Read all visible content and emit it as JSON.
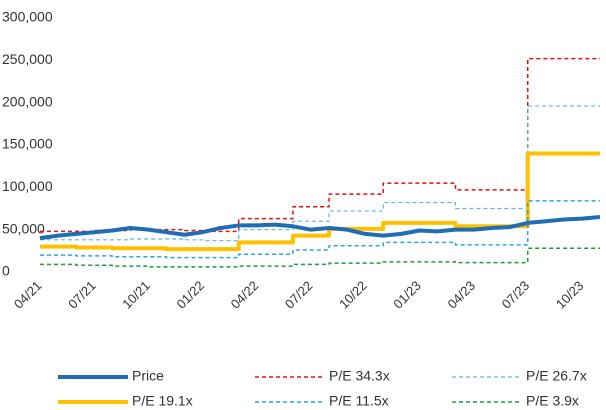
{
  "chart_data": {
    "type": "line",
    "categories": [
      "04/21",
      null,
      null,
      "07/21",
      null,
      null,
      "10/21",
      null,
      null,
      "01/22",
      null,
      null,
      "04/22",
      null,
      null,
      "07/22",
      null,
      null,
      "10/22",
      null,
      null,
      "01/23",
      null,
      null,
      "04/23",
      null,
      null,
      "07/23",
      null,
      null,
      "10/23",
      null
    ],
    "ylim": [
      0,
      300000
    ],
    "yticks": [
      0,
      {
        "value": 50000,
        "label": "50,000"
      },
      {
        "value": 100000,
        "label": "100,000"
      },
      {
        "value": 150000,
        "label": "150,000"
      },
      {
        "value": 200000,
        "label": "200,000"
      },
      {
        "value": 250000,
        "label": "250,000"
      },
      {
        "value": 300000,
        "label": "300,000"
      }
    ],
    "grid": false,
    "legend": "bottom",
    "series": [
      {
        "name": "Price",
        "color": "#1f6db5",
        "step": false,
        "dashed": false,
        "width": 4,
        "values": [
          40000,
          43000,
          45000,
          47000,
          49000,
          52000,
          50000,
          47000,
          44000,
          47000,
          52000,
          55000,
          55000,
          56000,
          54000,
          50000,
          52000,
          50000,
          45000,
          43000,
          45000,
          49000,
          48000,
          50000,
          50000,
          52000,
          53000,
          58000,
          60000,
          62000,
          63000,
          65000
        ]
      },
      {
        "name": "P/E 34.3x",
        "color": "#e3120b",
        "step": true,
        "dashed": true,
        "width": 1.5,
        "values": [
          48000,
          48000,
          48000,
          49000,
          49000,
          50000,
          50000,
          50000,
          49000,
          48000,
          48000,
          63000,
          63000,
          63000,
          77000,
          77000,
          92000,
          92000,
          92000,
          105000,
          105000,
          105000,
          105000,
          97000,
          97000,
          97000,
          97000,
          252000,
          252000,
          252000,
          252000,
          252000
        ]
      },
      {
        "name": "P/E 26.7x",
        "color": "#5bb4e8",
        "step": true,
        "dashed": true,
        "width": 1.2,
        "values": [
          38000,
          38000,
          38000,
          38000,
          38000,
          39000,
          39000,
          39000,
          38000,
          37000,
          37000,
          50000,
          50000,
          50000,
          60000,
          60000,
          72000,
          72000,
          72000,
          82000,
          82000,
          82000,
          82000,
          75000,
          75000,
          75000,
          75000,
          196000,
          196000,
          196000,
          196000,
          196000
        ]
      },
      {
        "name": "P/E 19.1x",
        "color": "#ffc000",
        "step": true,
        "dashed": false,
        "width": 4,
        "values": [
          30000,
          30000,
          29000,
          29000,
          28000,
          28000,
          28000,
          27000,
          27000,
          27000,
          27000,
          35000,
          35000,
          35000,
          43000,
          43000,
          51000,
          51000,
          51000,
          58000,
          58000,
          58000,
          58000,
          54000,
          54000,
          54000,
          54000,
          140000,
          140000,
          140000,
          140000,
          140000
        ]
      },
      {
        "name": "P/E 11.5x",
        "color": "#29a6e0",
        "step": true,
        "dashed": true,
        "width": 1.5,
        "values": [
          20000,
          20000,
          19000,
          19000,
          18000,
          18000,
          18000,
          17000,
          17000,
          17000,
          17000,
          21000,
          21000,
          21000,
          26000,
          26000,
          31000,
          31000,
          31000,
          35000,
          35000,
          35000,
          35000,
          32000,
          32000,
          32000,
          32000,
          84000,
          84000,
          84000,
          84000,
          84000
        ]
      },
      {
        "name": "P/E 3.9x",
        "color": "#1a9e3a",
        "step": true,
        "dashed": true,
        "width": 1.5,
        "values": [
          9000,
          9000,
          8000,
          8000,
          7000,
          7000,
          6000,
          6000,
          6000,
          6000,
          6000,
          7000,
          7000,
          7000,
          9000,
          9000,
          10500,
          10500,
          10500,
          12000,
          12000,
          12000,
          12000,
          11000,
          11000,
          11000,
          11000,
          28000,
          28000,
          28000,
          28000,
          28000
        ]
      }
    ]
  }
}
